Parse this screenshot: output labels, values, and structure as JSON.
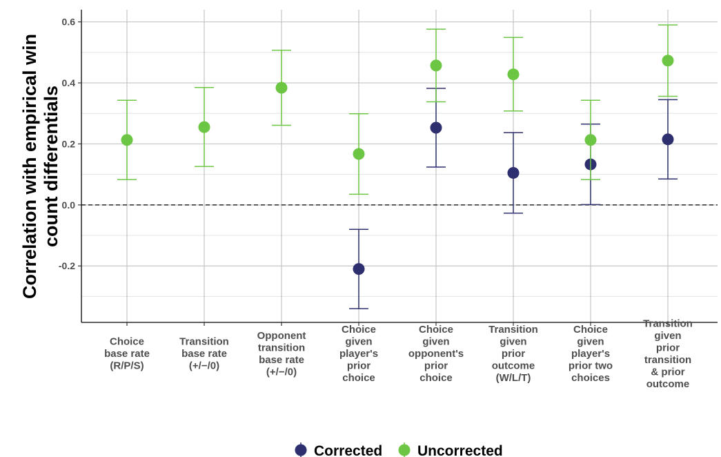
{
  "chart_data": {
    "type": "scatter",
    "title": "",
    "ylabel": [
      "Correlation with empirical win",
      "count differentials"
    ],
    "xlabel": "",
    "ylim": [
      -0.385,
      0.64
    ],
    "yticks": [
      0.6,
      0.4,
      0.2,
      0.0,
      -0.2
    ],
    "ytick_labels": [
      "0.6",
      "0.4",
      "0.2",
      "0.0",
      "-0.2"
    ],
    "minor_gridlines": [
      0.5,
      0.3,
      0.1,
      -0.1,
      -0.3
    ],
    "reference_line": 0.0,
    "grid": true,
    "legend_position": "bottom",
    "categories": [
      [
        "Choice",
        "base rate",
        "(R/P/S)"
      ],
      [
        "Transition",
        "base rate",
        "(+/−/0)"
      ],
      [
        "Opponent",
        "transition",
        "base rate",
        "(+/−/0)"
      ],
      [
        "Choice",
        "given",
        "player's",
        "prior",
        "choice"
      ],
      [
        "Choice",
        "given",
        "opponent's",
        "prior",
        "choice"
      ],
      [
        "Transition",
        "given",
        "prior",
        "outcome",
        "(W/L/T)"
      ],
      [
        "Choice",
        "given",
        "player's",
        "prior two",
        "choices"
      ],
      [
        "Transition",
        "given",
        "prior",
        "transition",
        "& prior",
        "outcome"
      ]
    ],
    "series": [
      {
        "name": "Corrected",
        "color": "#2d2f6e",
        "points": [
          null,
          null,
          null,
          {
            "y": -0.21,
            "low": -0.34,
            "high": -0.08
          },
          {
            "y": 0.253,
            "low": 0.124,
            "high": 0.382
          },
          {
            "y": 0.105,
            "low": -0.027,
            "high": 0.237
          },
          {
            "y": 0.133,
            "low": 0.001,
            "high": 0.265
          },
          {
            "y": 0.215,
            "low": 0.085,
            "high": 0.345
          }
        ]
      },
      {
        "name": "Uncorrected",
        "color": "#6cc644",
        "points": [
          {
            "y": 0.213,
            "low": 0.083,
            "high": 0.343
          },
          {
            "y": 0.255,
            "low": 0.126,
            "high": 0.385
          },
          {
            "y": 0.384,
            "low": 0.261,
            "high": 0.507
          },
          {
            "y": 0.167,
            "low": 0.035,
            "high": 0.299
          },
          {
            "y": 0.457,
            "low": 0.338,
            "high": 0.576
          },
          {
            "y": 0.428,
            "low": 0.308,
            "high": 0.549
          },
          {
            "y": 0.213,
            "low": 0.083,
            "high": 0.343
          },
          {
            "y": 0.473,
            "low": 0.356,
            "high": 0.59
          }
        ]
      }
    ]
  }
}
